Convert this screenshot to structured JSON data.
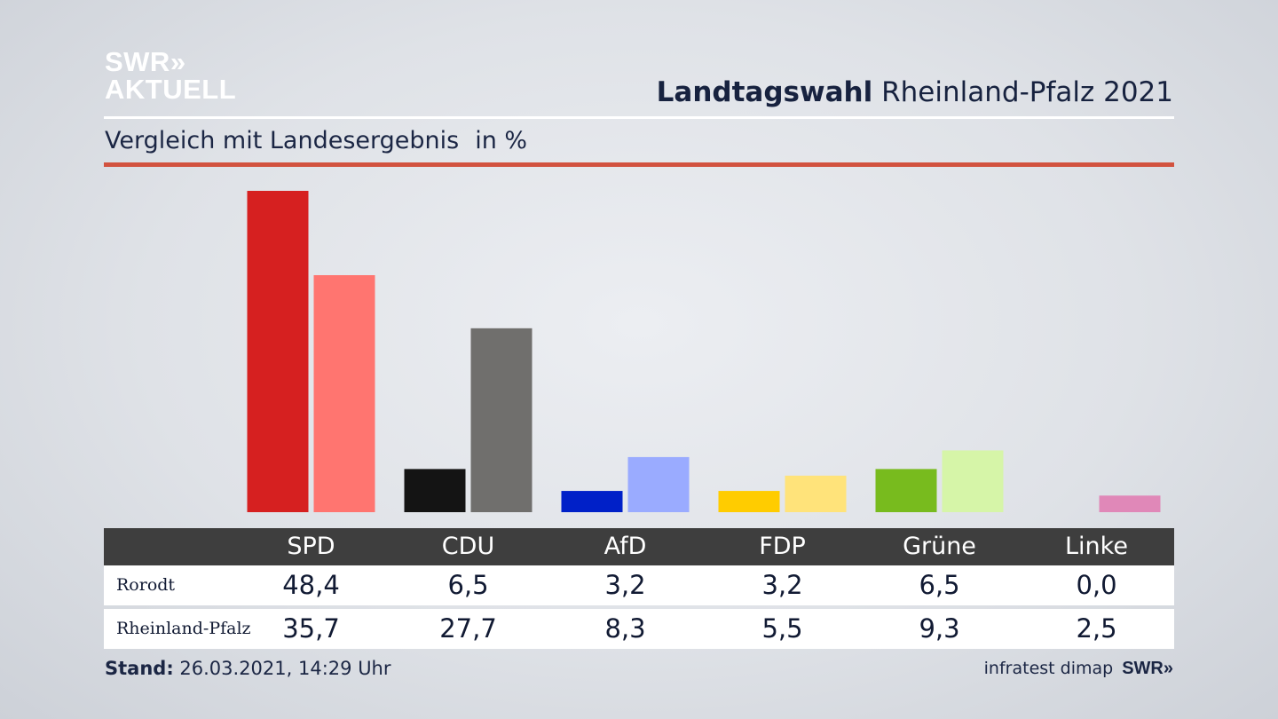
{
  "branding": {
    "logo_line1": "SWR",
    "logo_chevrons": "»",
    "logo_line2": "AKTUELL"
  },
  "header": {
    "title_bold": "Landtagswahl",
    "title_rest": "Rheinland-Pfalz 2021",
    "subtitle": "Vergleich mit Landesergebnis",
    "unit": "in %"
  },
  "chart_data": {
    "type": "bar",
    "categories": [
      "SPD",
      "CDU",
      "AfD",
      "FDP",
      "Grüne",
      "Linke"
    ],
    "series": [
      {
        "name": "Rorodt",
        "values": [
          48.4,
          6.5,
          3.2,
          3.2,
          6.5,
          0.0
        ],
        "colors": [
          "#d62020",
          "#141414",
          "#0020c8",
          "#ffcc00",
          "#78bb1e",
          "#ff00aa"
        ]
      },
      {
        "name": "Rheinland-Pfalz",
        "values": [
          35.7,
          27.7,
          8.3,
          5.5,
          9.3,
          2.5
        ],
        "colors": [
          "#ff7570",
          "#706f6d",
          "#9aabff",
          "#ffe37a",
          "#d6f5a8",
          "#e088b8"
        ]
      }
    ],
    "value_labels": [
      [
        "48,4",
        "6,5",
        "3,2",
        "3,2",
        "6,5",
        "0,0"
      ],
      [
        "35,7",
        "27,7",
        "8,3",
        "5,5",
        "9,3",
        "2,5"
      ]
    ],
    "ylim": [
      0,
      48.4
    ],
    "grid": false,
    "legend": "table-below"
  },
  "footer": {
    "stand_label": "Stand:",
    "stand_value": "26.03.2021, 14:29 Uhr",
    "source": "infratest dimap",
    "source_logo": "SWR»"
  }
}
